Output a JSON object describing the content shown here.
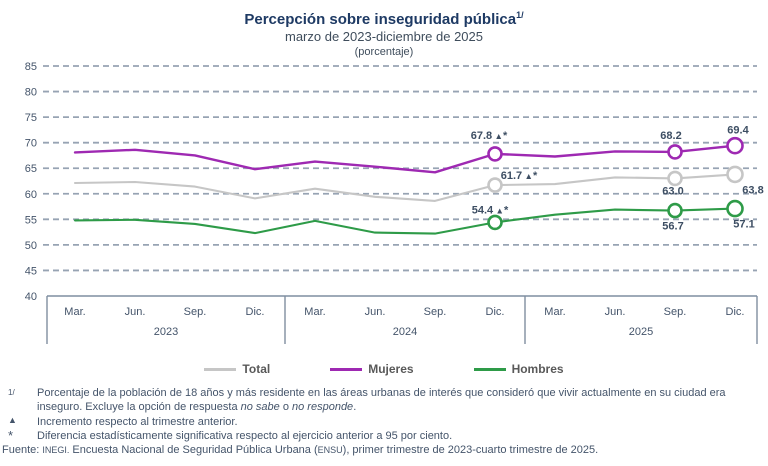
{
  "header": {
    "title": "Percepción sobre inseguridad pública",
    "title_superscript": "1/",
    "subtitle": "marzo de 2023-diciembre de 2025",
    "unit": "(porcentaje)"
  },
  "chart_data": {
    "type": "line",
    "title": "Percepción sobre inseguridad pública 1/",
    "subtitle": "marzo de 2023-diciembre de 2025",
    "unit_label": "(porcentaje)",
    "x": [
      "Mar. 2023",
      "Jun. 2023",
      "Sep. 2023",
      "Dic. 2023",
      "Mar. 2024",
      "Jun. 2024",
      "Sep. 2024",
      "Dic. 2024",
      "Mar. 2025",
      "Jun. 2025",
      "Sep. 2025",
      "Dic. 2025"
    ],
    "month_ticks": [
      "Mar.",
      "Jun.",
      "Sep.",
      "Dic.",
      "Mar.",
      "Jun.",
      "Sep.",
      "Dic.",
      "Mar.",
      "Jun.",
      "Sep.",
      "Dic."
    ],
    "year_groups": [
      "2023",
      "2024",
      "2025"
    ],
    "ylim": [
      40,
      85
    ],
    "yticks": [
      85,
      80,
      75,
      70,
      65,
      60,
      55,
      50,
      45,
      40
    ],
    "grid": "dashed-horizontal",
    "legend_position": "bottom",
    "series": [
      {
        "name": "Total",
        "color": "#c6c6c6",
        "values": [
          62.1,
          62.3,
          61.4,
          59.1,
          61.0,
          59.4,
          58.6,
          61.7,
          61.9,
          63.2,
          63.0,
          63.8
        ],
        "marker_indices": [
          7,
          10,
          11
        ],
        "point_labels": {
          "7": "61.7 ▲*",
          "10": "63.0",
          "11": "63.8"
        }
      },
      {
        "name": "Hombres",
        "color": "#2e9b48",
        "values": [
          54.8,
          54.9,
          54.1,
          52.3,
          54.7,
          52.4,
          52.2,
          54.4,
          55.9,
          56.9,
          56.7,
          57.1
        ],
        "marker_indices": [
          7,
          10,
          11
        ],
        "point_labels": {
          "7": "54.4 ▲*",
          "10": "56.7",
          "11": "57.1"
        }
      },
      {
        "name": "Mujeres",
        "color": "#9e29b2",
        "values": [
          68.1,
          68.6,
          67.5,
          64.8,
          66.3,
          65.3,
          64.2,
          67.8,
          67.3,
          68.3,
          68.2,
          69.4
        ],
        "marker_indices": [
          7,
          10,
          11
        ],
        "point_labels": {
          "7": "67.8 ▲*",
          "10": "68.2",
          "11": "69.4"
        }
      }
    ]
  },
  "legend": {
    "items": [
      {
        "label": "Total",
        "color": "#c6c6c6"
      },
      {
        "label": "Mujeres",
        "color": "#9e29b2"
      },
      {
        "label": "Hombres",
        "color": "#2e9b48"
      }
    ]
  },
  "footnotes": [
    {
      "marker": "1/",
      "parts": [
        {
          "t": "Porcentaje de la población de 18 años y más residente en las áreas urbanas de interés que consideró que vivir actualmente en su ciudad era inseguro. Excluye la opción de respuesta "
        },
        {
          "t": "no sabe",
          "italic": true
        },
        {
          "t": " o "
        },
        {
          "t": "no responde",
          "italic": true
        },
        {
          "t": "."
        }
      ]
    },
    {
      "marker": "▲",
      "text": "Incremento respecto al trimestre anterior."
    },
    {
      "marker": "*",
      "text": "Diferencia estadísticamente significativa respecto al ejercicio anterior a 95 por ciento."
    }
  ],
  "source": {
    "prefix": "Fuente: ",
    "agency": "INEGI.",
    "mid": " Encuesta Nacional de Seguridad Pública Urbana (",
    "acronym": "ENSU",
    "suffix": "), primer trimestre de 2023-cuarto trimestre de 2025."
  },
  "colors": {
    "title": "#1e3a64",
    "text": "#44546a",
    "grid": "#97a3b3",
    "axis": "#7f8ea0",
    "data_label": "#3d4e63",
    "legend_text": "#595959"
  }
}
